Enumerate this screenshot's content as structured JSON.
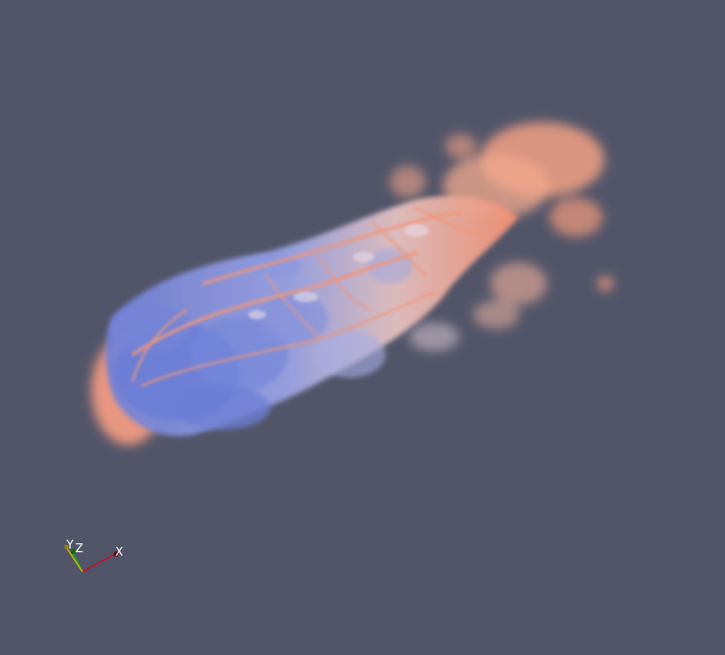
{
  "render_view": {
    "background_color": "#525569",
    "volume": {
      "colormap": "cool-to-warm",
      "warm_color": "#f08a6a",
      "cool_color": "#6c7fd8",
      "mid_color": "#d8d4e6"
    }
  },
  "orientation_axes": {
    "labels": {
      "x": "X",
      "y": "Y",
      "z": "Z"
    },
    "colors": {
      "x": "#c8102e",
      "y": "#c9b200",
      "z": "#1aa51a"
    }
  }
}
